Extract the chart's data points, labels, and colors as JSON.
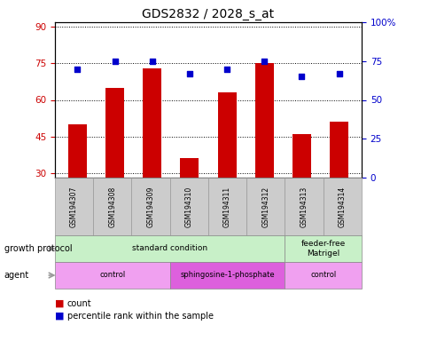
{
  "title": "GDS2832 / 2028_s_at",
  "samples": [
    "GSM194307",
    "GSM194308",
    "GSM194309",
    "GSM194310",
    "GSM194311",
    "GSM194312",
    "GSM194313",
    "GSM194314"
  ],
  "counts": [
    50,
    65,
    73,
    36,
    63,
    75,
    46,
    51
  ],
  "percentile_ranks": [
    70,
    75,
    75,
    67,
    70,
    75,
    65,
    67
  ],
  "ylim_left": [
    28,
    92
  ],
  "ylim_right": [
    0,
    100
  ],
  "yticks_left": [
    30,
    45,
    60,
    75,
    90
  ],
  "yticks_right": [
    0,
    25,
    50,
    75,
    100
  ],
  "bar_color": "#cc0000",
  "dot_color": "#0000cc",
  "growth_protocol_groups": [
    {
      "label": "standard condition",
      "start": 0,
      "end": 6
    },
    {
      "label": "feeder-free\nMatrigel",
      "start": 6,
      "end": 8
    }
  ],
  "growth_protocol_colors": [
    "#c8f0c8",
    "#c8f0c8"
  ],
  "agent_groups": [
    {
      "label": "control",
      "start": 0,
      "end": 3
    },
    {
      "label": "sphingosine-1-phosphate",
      "start": 3,
      "end": 6
    },
    {
      "label": "control",
      "start": 6,
      "end": 8
    }
  ],
  "agent_colors": [
    "#f0a0f0",
    "#dd60dd",
    "#f0a0f0"
  ],
  "legend_count_color": "#cc0000",
  "legend_dot_color": "#0000cc",
  "sample_box_color": "#cccccc",
  "sample_box_edge": "#999999"
}
